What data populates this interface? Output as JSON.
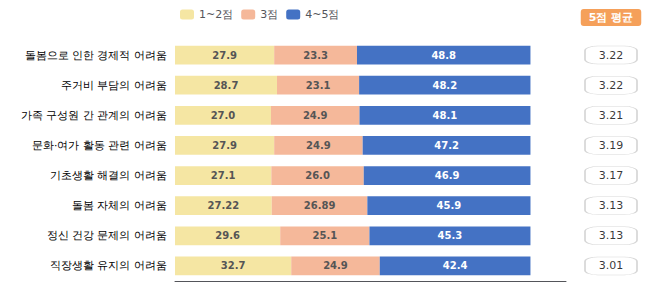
{
  "chart_data": {
    "type": "bar",
    "orientation": "horizontal",
    "stacked": true,
    "data_labels": true,
    "tick_labels": "y",
    "categories": [
      "돌봄으로 인한 경제적 어려움",
      "주거비 부담의 어려움",
      "가족 구성원 간 관계의 어려움",
      "문화·여가 활동 관련 어려움",
      "기초생활 해결의 어려움",
      "돌봄 자체의 어려움",
      "정신 건강 문제의 어려움",
      "직장생활 유지의 어려움"
    ],
    "series": [
      {
        "name": "1~2점",
        "color": "#F5E6A3",
        "values": [
          27.9,
          28.7,
          27.0,
          27.9,
          27.1,
          27.22,
          29.6,
          32.7
        ],
        "value_labels": [
          "27.9",
          "28.7",
          "27.0",
          "27.9",
          "27.1",
          "27.22",
          "29.6",
          "32.7"
        ]
      },
      {
        "name": "3점",
        "color": "#F5B89A",
        "values": [
          23.3,
          23.1,
          24.9,
          24.9,
          26.0,
          26.89,
          25.1,
          24.9
        ],
        "value_labels": [
          "23.3",
          "23.1",
          "24.9",
          "24.9",
          "26.0",
          "26.89",
          "25.1",
          "24.9"
        ]
      },
      {
        "name": "4~5점",
        "color": "#4472C4",
        "values": [
          48.8,
          48.2,
          48.1,
          47.2,
          46.9,
          45.9,
          45.3,
          42.4
        ]
      }
    ],
    "xlim": [
      0,
      110
    ],
    "average_label": "5점 평균",
    "averages": [
      3.22,
      3.22,
      3.21,
      3.19,
      3.17,
      3.13,
      3.13,
      3.01
    ]
  }
}
